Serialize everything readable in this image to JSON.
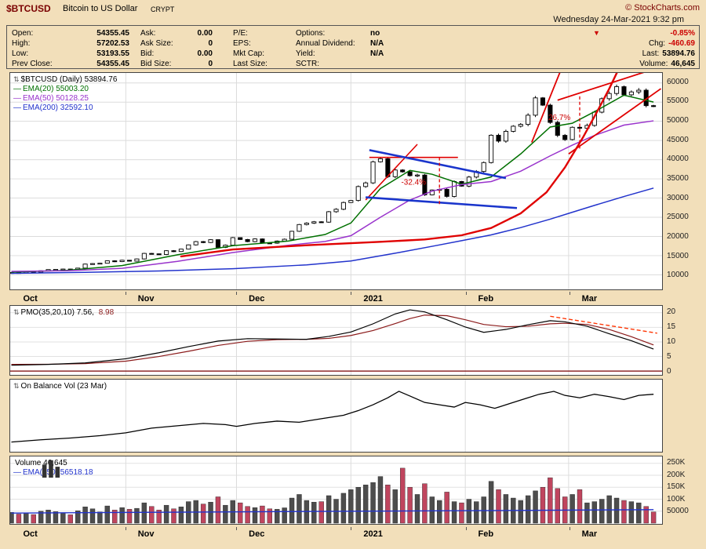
{
  "header": {
    "symbol": "$BTCUSD",
    "name": "Bitcoin to US Dollar",
    "suffix": "CRYPT",
    "copyright": "© StockCharts.com",
    "datetime": "Wednesday 24-Mar-2021 9:32 pm"
  },
  "icons": {
    "up_down": "⇅",
    "down_triangle": "▼"
  },
  "quote_columns": [
    {
      "items": [
        [
          "Open:",
          "54355.45"
        ],
        [
          "High:",
          "57202.53"
        ],
        [
          "Low:",
          "53193.55"
        ],
        [
          "Prev Close:",
          "54355.45"
        ]
      ]
    },
    {
      "items": [
        [
          "Ask:",
          "0.00"
        ],
        [
          "Ask Size:",
          "0"
        ],
        [
          "Bid:",
          "0.00"
        ],
        [
          "Bid Size:",
          "0"
        ]
      ]
    },
    {
      "items": [
        [
          "P/E:",
          ""
        ],
        [
          "EPS:",
          ""
        ],
        [
          "Mkt Cap:",
          ""
        ],
        [
          "Last Size:",
          ""
        ]
      ]
    },
    {
      "items": [
        [
          "Options:",
          "no"
        ],
        [
          "Annual Dividend:",
          "N/A"
        ],
        [
          "Yield:",
          "N/A"
        ],
        [
          "SCTR:",
          ""
        ]
      ]
    }
  ],
  "quote_summary": {
    "pct": "-0.85%",
    "rows": [
      [
        "Chg:",
        "-460.69",
        "#cc0000"
      ],
      [
        "Last:",
        "53894.76",
        ""
      ],
      [
        "Volume:",
        "46,645",
        ""
      ]
    ]
  },
  "x_axis": {
    "labels": [
      "Oct",
      "Nov",
      "Dec",
      "2021",
      "Feb",
      "Mar"
    ],
    "month_start_days": [
      0,
      31,
      61,
      92,
      123,
      151
    ]
  },
  "chart_data": [
    {
      "type": "candlestick",
      "name": "$BTCUSD Daily price, Oct 2020 - 24 Mar 2021",
      "legend": "$BTCUSD (Daily) 53894.76",
      "total_days": 176,
      "sample_interval_days": 2,
      "ylim": [
        6200,
        62600
      ],
      "y_ticks": [
        10000,
        15000,
        20000,
        25000,
        30000,
        35000,
        40000,
        45000,
        50000,
        55000,
        60000
      ],
      "candle_up_fill": "#ffffff",
      "candle_down_fill": "#000000",
      "close": [
        10600,
        10540,
        10790,
        10660,
        11060,
        11370,
        11420,
        11500,
        11360,
        11750,
        12800,
        12930,
        13030,
        13650,
        13440,
        13800,
        13560,
        14140,
        15580,
        15470,
        15290,
        16280,
        16070,
        16700,
        17800,
        18650,
        18410,
        19150,
        17150,
        17720,
        19690,
        19200,
        18650,
        19350,
        18320,
        18250,
        18800,
        19270,
        21340,
        23100,
        23470,
        23820,
        23730,
        26440,
        27080,
        28840,
        29370,
        33000,
        33950,
        39450,
        40240,
        35570,
        37310,
        36830,
        35830,
        36000,
        30830,
        32100,
        32260,
        30430,
        34320,
        33110,
        35470,
        36930,
        39250,
        46370,
        44840,
        47380,
        48720,
        49200,
        51590,
        56100,
        54210,
        49710,
        46340,
        45240,
        48440,
        48200,
        48920,
        52380,
        55890,
        57250,
        59020,
        56900,
        57650,
        58100,
        54080,
        53894.76
      ],
      "overlays": [
        {
          "label": "EMA(20) 55003.20",
          "color": "#007000",
          "points": [
            [
              0,
              10700
            ],
            [
              15,
              11150
            ],
            [
              30,
              12400
            ],
            [
              45,
              15200
            ],
            [
              60,
              17600
            ],
            [
              75,
              18800
            ],
            [
              85,
              20500
            ],
            [
              92,
              23500
            ],
            [
              100,
              32500
            ],
            [
              108,
              37200
            ],
            [
              114,
              36200
            ],
            [
              122,
              33600
            ],
            [
              130,
              35500
            ],
            [
              138,
              41500
            ],
            [
              146,
              48500
            ],
            [
              152,
              49500
            ],
            [
              158,
              52500
            ],
            [
              166,
              56800
            ],
            [
              174,
              55003
            ]
          ]
        },
        {
          "label": "EMA(50) 50128.25",
          "color": "#9933cc",
          "points": [
            [
              0,
              10900
            ],
            [
              15,
              11050
            ],
            [
              30,
              11700
            ],
            [
              45,
              13500
            ],
            [
              60,
              15800
            ],
            [
              75,
              17700
            ],
            [
              85,
              18700
            ],
            [
              92,
              20200
            ],
            [
              100,
              25000
            ],
            [
              108,
              29500
            ],
            [
              114,
              31800
            ],
            [
              122,
              33500
            ],
            [
              130,
              34300
            ],
            [
              138,
              37000
            ],
            [
              146,
              41000
            ],
            [
              152,
              43800
            ],
            [
              158,
              46300
            ],
            [
              166,
              49000
            ],
            [
              174,
              50128
            ]
          ]
        },
        {
          "label": "EMA(200) 32592.10",
          "color": "#2233cc",
          "points": [
            [
              0,
              10400
            ],
            [
              20,
              10650
            ],
            [
              40,
              11000
            ],
            [
              60,
              11600
            ],
            [
              80,
              12600
            ],
            [
              92,
              13600
            ],
            [
              105,
              15800
            ],
            [
              115,
              17600
            ],
            [
              122,
              18900
            ],
            [
              130,
              20400
            ],
            [
              138,
              22300
            ],
            [
              146,
              24500
            ],
            [
              152,
              26300
            ],
            [
              158,
              28100
            ],
            [
              166,
              30400
            ],
            [
              174,
              32592
            ]
          ]
        }
      ],
      "annotations": {
        "parabola": {
          "color": "#e00000",
          "points": [
            [
              46,
              14800
            ],
            [
              60,
              16600
            ],
            [
              80,
              17700
            ],
            [
              100,
              18600
            ],
            [
              112,
              19200
            ],
            [
              122,
              20300
            ],
            [
              130,
              22200
            ],
            [
              138,
              26000
            ],
            [
              145,
              31500
            ],
            [
              150,
              38000
            ],
            [
              155,
              46000
            ],
            [
              159,
              53000
            ],
            [
              162,
              58500
            ],
            [
              165,
              64500
            ]
          ]
        },
        "lines": [
          {
            "name": "jan-resistance",
            "from": [
              97,
              40600
            ],
            "to": [
              121,
              40600
            ],
            "color": "#e00000",
            "w": 1.6
          },
          {
            "name": "jan-diagonal",
            "from": [
              96,
              29500
            ],
            "to": [
              110,
              44000
            ],
            "color": "#e00000",
            "w": 1.6
          },
          {
            "name": "triangle-upper",
            "from": [
              97,
              42500
            ],
            "to": [
              134,
              35200
            ],
            "color": "#1a35cc",
            "w": 2.6
          },
          {
            "name": "triangle-lower",
            "from": [
              96,
              30200
            ],
            "to": [
              137,
              27400
            ],
            "color": "#1a35cc",
            "w": 2.6
          },
          {
            "name": "jan-measure",
            "from": [
              116,
              40600
            ],
            "to": [
              116,
              28200
            ],
            "color": "#e00000",
            "w": 1.3,
            "dash": "4 3"
          },
          {
            "name": "mar-steep",
            "from": [
              141,
              44500
            ],
            "to": [
              150,
              66000
            ],
            "color": "#e00000",
            "w": 1.8
          },
          {
            "name": "mar-support",
            "from": [
              151,
              41500
            ],
            "to": [
              176,
              58500
            ],
            "color": "#e00000",
            "w": 1.8
          },
          {
            "name": "mar-upper",
            "from": [
              148,
              55500
            ],
            "to": [
              176,
              64200
            ],
            "color": "#e00000",
            "w": 1.8
          },
          {
            "name": "mar-measure",
            "from": [
              154,
              56500
            ],
            "to": [
              154,
              42800
            ],
            "color": "#e00000",
            "w": 1.3,
            "dash": "4 3"
          }
        ],
        "labels": [
          {
            "text": "-32.4%",
            "day": 109,
            "value": 33500,
            "color": "#cc0000"
          },
          {
            "text": "26.7%",
            "day": 148.5,
            "value": 50300,
            "color": "#cc0000"
          }
        ]
      }
    },
    {
      "type": "line",
      "name": "PMO(35,20,10)",
      "legend": "PMO(35,20,10) 7.56,",
      "legend_signal": "8.98",
      "last_values": [
        7.56,
        8.98
      ],
      "y_ticks": [
        20,
        15,
        10,
        5,
        0
      ],
      "series": [
        {
          "name": "PMO",
          "color": "#000000",
          "points": [
            [
              0,
              2.0
            ],
            [
              10,
              2.3
            ],
            [
              20,
              2.8
            ],
            [
              31,
              4.2
            ],
            [
              40,
              6.3
            ],
            [
              48,
              8.4
            ],
            [
              56,
              10.3
            ],
            [
              64,
              11.1
            ],
            [
              72,
              11.0
            ],
            [
              80,
              10.9
            ],
            [
              86,
              11.9
            ],
            [
              92,
              13.4
            ],
            [
              98,
              16.2
            ],
            [
              104,
              19.6
            ],
            [
              108,
              21.0
            ],
            [
              112,
              20.3
            ],
            [
              118,
              17.6
            ],
            [
              123,
              15.1
            ],
            [
              128,
              13.3
            ],
            [
              134,
              14.3
            ],
            [
              140,
              15.9
            ],
            [
              146,
              17.3
            ],
            [
              150,
              16.9
            ],
            [
              156,
              15.4
            ],
            [
              162,
              12.8
            ],
            [
              168,
              10.4
            ],
            [
              174,
              7.56
            ]
          ]
        },
        {
          "name": "PMO signal",
          "color": "#8b1a1a",
          "points": [
            [
              0,
              2.3
            ],
            [
              10,
              2.35
            ],
            [
              20,
              2.55
            ],
            [
              31,
              3.4
            ],
            [
              40,
              5.0
            ],
            [
              48,
              6.8
            ],
            [
              56,
              8.8
            ],
            [
              64,
              10.2
            ],
            [
              72,
              10.8
            ],
            [
              80,
              10.9
            ],
            [
              86,
              11.2
            ],
            [
              92,
              12.2
            ],
            [
              98,
              13.9
            ],
            [
              104,
              16.3
            ],
            [
              108,
              18.0
            ],
            [
              112,
              19.2
            ],
            [
              118,
              19.0
            ],
            [
              123,
              17.6
            ],
            [
              128,
              16.0
            ],
            [
              134,
              15.2
            ],
            [
              140,
              15.4
            ],
            [
              146,
              16.2
            ],
            [
              150,
              16.4
            ],
            [
              156,
              16.0
            ],
            [
              162,
              14.3
            ],
            [
              168,
              11.8
            ],
            [
              174,
              8.98
            ]
          ]
        }
      ],
      "trendline": {
        "from": [
          146,
          18.8
        ],
        "to": [
          175,
          13.0
        ],
        "color": "#ff3300"
      }
    },
    {
      "type": "line",
      "name": "On Balance Volume",
      "legend": "On Balance Vol (23 Mar)",
      "color": "#000000",
      "points_normalized": [
        [
          0,
          0.06
        ],
        [
          8,
          0.1
        ],
        [
          16,
          0.13
        ],
        [
          24,
          0.17
        ],
        [
          31,
          0.22
        ],
        [
          38,
          0.3
        ],
        [
          45,
          0.34
        ],
        [
          52,
          0.38
        ],
        [
          58,
          0.36
        ],
        [
          61,
          0.33
        ],
        [
          66,
          0.38
        ],
        [
          72,
          0.42
        ],
        [
          78,
          0.4
        ],
        [
          84,
          0.46
        ],
        [
          90,
          0.52
        ],
        [
          94,
          0.6
        ],
        [
          98,
          0.7
        ],
        [
          102,
          0.82
        ],
        [
          105,
          0.93
        ],
        [
          108,
          0.85
        ],
        [
          112,
          0.74
        ],
        [
          116,
          0.7
        ],
        [
          120,
          0.66
        ],
        [
          123,
          0.74
        ],
        [
          127,
          0.7
        ],
        [
          131,
          0.64
        ],
        [
          135,
          0.72
        ],
        [
          139,
          0.8
        ],
        [
          143,
          0.88
        ],
        [
          147,
          0.93
        ],
        [
          150,
          0.86
        ],
        [
          154,
          0.82
        ],
        [
          158,
          0.88
        ],
        [
          162,
          0.84
        ],
        [
          166,
          0.79
        ],
        [
          170,
          0.86
        ],
        [
          174,
          0.88
        ]
      ]
    },
    {
      "type": "bar",
      "name": "Volume",
      "legend": "Volume 46,645",
      "last_volume": "46,645",
      "ema_label": "EMA(250) 56518.18",
      "ema_color": "#2233cc",
      "up_color": "#4d4d4d",
      "down_color": "#c0455e",
      "y_ticks_labels": [
        "250K",
        "200K",
        "150K",
        "100K",
        "50000"
      ],
      "y_ticks_values": [
        250000,
        200000,
        150000,
        100000,
        50000
      ],
      "values_k": [
        45,
        38,
        42,
        36,
        50,
        55,
        48,
        40,
        35,
        52,
        68,
        60,
        47,
        72,
        55,
        65,
        58,
        62,
        85,
        70,
        55,
        75,
        60,
        68,
        90,
        95,
        80,
        88,
        110,
        75,
        95,
        85,
        70,
        65,
        72,
        60,
        58,
        64,
        105,
        120,
        95,
        88,
        90,
        115,
        100,
        125,
        140,
        150,
        160,
        170,
        195,
        160,
        140,
        230,
        150,
        120,
        165,
        110,
        95,
        130,
        90,
        85,
        100,
        90,
        110,
        175,
        140,
        120,
        105,
        95,
        115,
        135,
        150,
        190,
        145,
        110,
        120,
        140,
        85,
        90,
        100,
        115,
        105,
        95,
        90,
        85,
        70,
        47
      ],
      "ema_points": [
        [
          0,
          42000
        ],
        [
          60,
          47000
        ],
        [
          120,
          52000
        ],
        [
          174,
          56518
        ]
      ]
    }
  ]
}
